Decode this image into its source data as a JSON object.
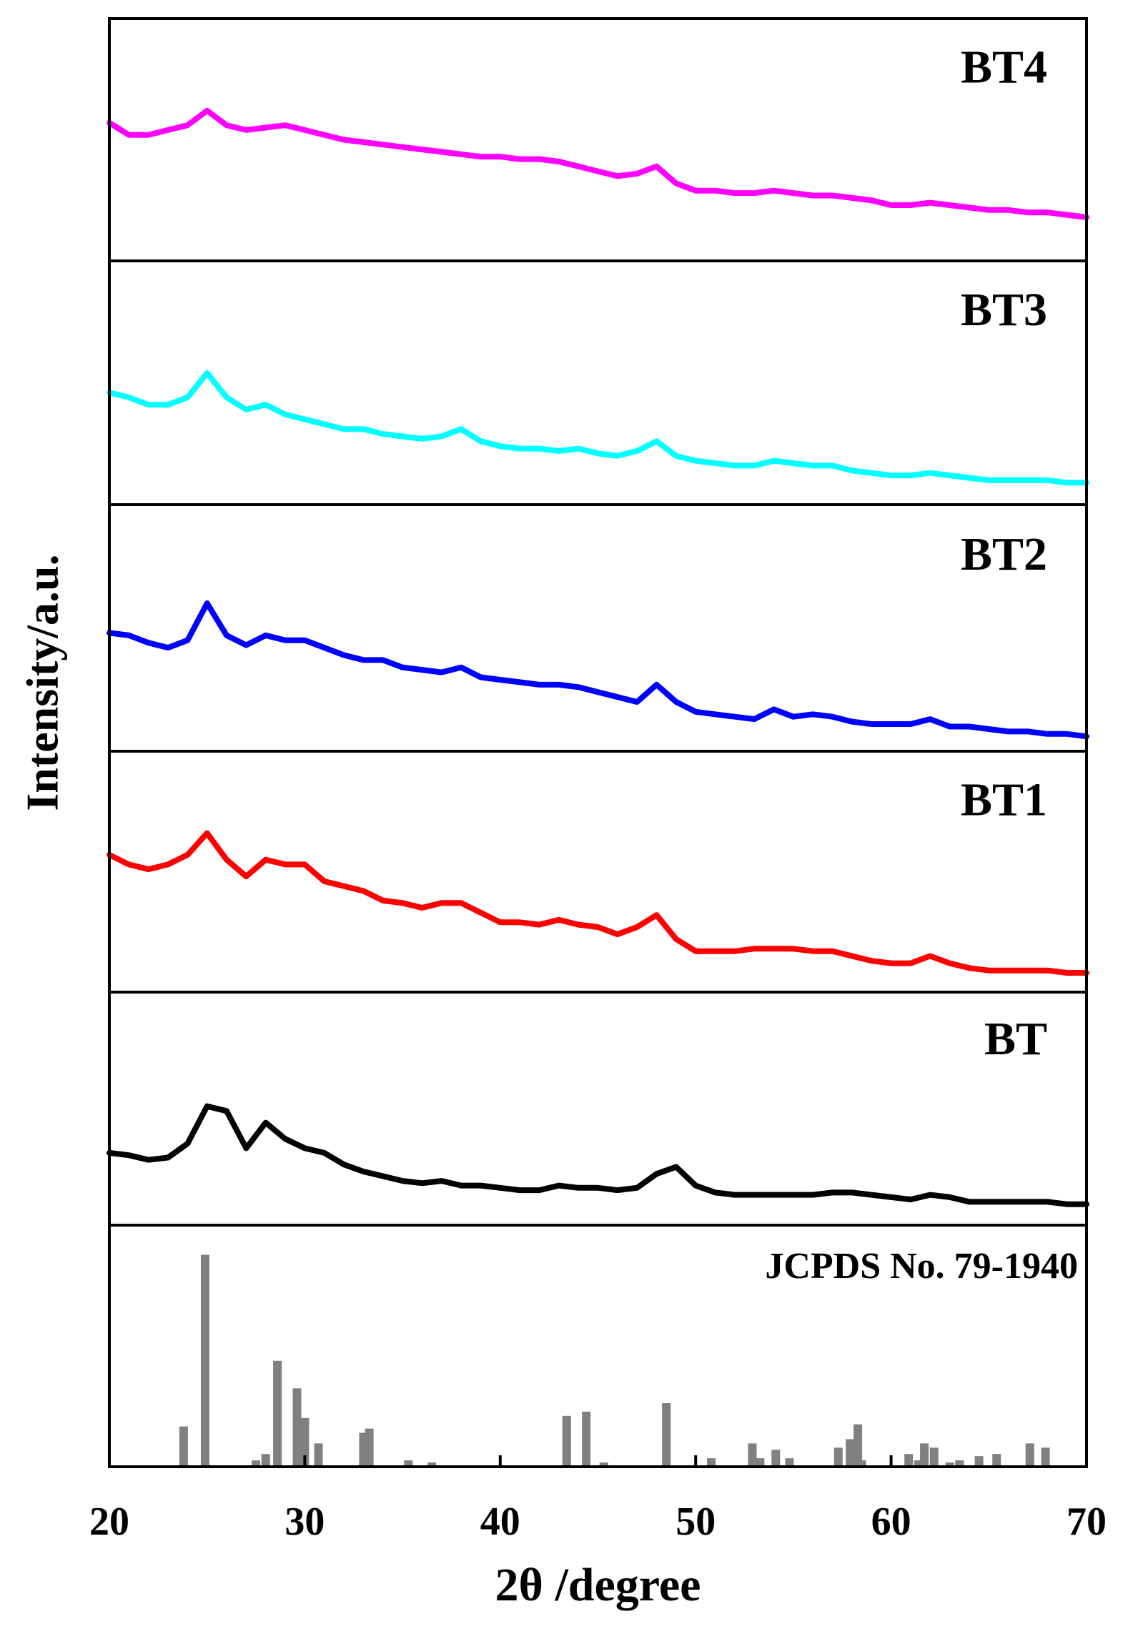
{
  "chart_data": [
    {
      "type": "line",
      "ylabel": "Intensity/a.u.",
      "xlim": [
        20,
        70
      ],
      "ylim": [
        0,
        100
      ],
      "x": [
        20,
        21,
        22,
        23,
        24,
        25,
        26,
        27,
        28,
        29,
        30,
        31,
        32,
        33,
        34,
        35,
        36,
        37,
        38,
        39,
        40,
        41,
        42,
        43,
        44,
        45,
        46,
        47,
        48,
        49,
        50,
        51,
        52,
        53,
        54,
        55,
        56,
        57,
        58,
        59,
        60,
        61,
        62,
        63,
        64,
        65,
        66,
        67,
        68,
        69,
        70
      ],
      "series": [
        {
          "name": "BT4",
          "color": "#ff00ff",
          "values": [
            57,
            52,
            52,
            54,
            56,
            62,
            56,
            54,
            55,
            56,
            54,
            52,
            50,
            49,
            48,
            47,
            46,
            45,
            44,
            43,
            43,
            42,
            42,
            41,
            39,
            37,
            35,
            36,
            39,
            32,
            29,
            29,
            28,
            28,
            29,
            28,
            27,
            27,
            26,
            25,
            23,
            23,
            24,
            23,
            22,
            21,
            21,
            20,
            20,
            19,
            18
          ]
        }
      ]
    },
    {
      "type": "line",
      "xlim": [
        20,
        70
      ],
      "ylim": [
        0,
        100
      ],
      "x": [
        20,
        21,
        22,
        23,
        24,
        25,
        26,
        27,
        28,
        29,
        30,
        31,
        32,
        33,
        34,
        35,
        36,
        37,
        38,
        39,
        40,
        41,
        42,
        43,
        44,
        45,
        46,
        47,
        48,
        49,
        50,
        51,
        52,
        53,
        54,
        55,
        56,
        57,
        58,
        59,
        60,
        61,
        62,
        63,
        64,
        65,
        66,
        67,
        68,
        69,
        70
      ],
      "series": [
        {
          "name": "BT3",
          "color": "#00ffff",
          "values": [
            46,
            44,
            41,
            41,
            44,
            54,
            44,
            39,
            41,
            37,
            35,
            33,
            31,
            31,
            29,
            28,
            27,
            28,
            31,
            26,
            24,
            23,
            23,
            22,
            23,
            21,
            20,
            22,
            26,
            20,
            18,
            17,
            16,
            16,
            18,
            17,
            16,
            16,
            14,
            13,
            12,
            12,
            13,
            12,
            11,
            10,
            10,
            10,
            10,
            9,
            9
          ]
        }
      ]
    },
    {
      "type": "line",
      "xlim": [
        20,
        70
      ],
      "ylim": [
        0,
        100
      ],
      "x": [
        20,
        21,
        22,
        23,
        24,
        25,
        26,
        27,
        28,
        29,
        30,
        31,
        32,
        33,
        34,
        35,
        36,
        37,
        38,
        39,
        40,
        41,
        42,
        43,
        44,
        45,
        46,
        47,
        48,
        49,
        50,
        51,
        52,
        53,
        54,
        55,
        56,
        57,
        58,
        59,
        60,
        61,
        62,
        63,
        64,
        65,
        66,
        67,
        68,
        69,
        70
      ],
      "series": [
        {
          "name": "BT2",
          "color": "#0000ff",
          "values": [
            48,
            47,
            44,
            42,
            45,
            60,
            47,
            43,
            47,
            45,
            45,
            42,
            39,
            37,
            37,
            34,
            33,
            32,
            34,
            30,
            29,
            28,
            27,
            27,
            26,
            24,
            22,
            20,
            27,
            20,
            16,
            15,
            14,
            13,
            17,
            14,
            15,
            14,
            12,
            11,
            11,
            11,
            13,
            10,
            10,
            9,
            8,
            8,
            7,
            7,
            6
          ]
        }
      ]
    },
    {
      "type": "line",
      "xlim": [
        20,
        70
      ],
      "ylim": [
        0,
        100
      ],
      "x": [
        20,
        21,
        22,
        23,
        24,
        25,
        26,
        27,
        28,
        29,
        30,
        31,
        32,
        33,
        34,
        35,
        36,
        37,
        38,
        39,
        40,
        41,
        42,
        43,
        44,
        45,
        46,
        47,
        48,
        49,
        50,
        51,
        52,
        53,
        54,
        55,
        56,
        57,
        58,
        59,
        60,
        61,
        62,
        63,
        64,
        65,
        66,
        67,
        68,
        69,
        70
      ],
      "series": [
        {
          "name": "BT1",
          "color": "#ff0000",
          "values": [
            57,
            53,
            51,
            53,
            57,
            66,
            55,
            48,
            55,
            53,
            53,
            46,
            44,
            42,
            38,
            37,
            35,
            37,
            37,
            33,
            29,
            29,
            28,
            30,
            28,
            27,
            24,
            27,
            32,
            22,
            17,
            17,
            17,
            18,
            18,
            18,
            17,
            17,
            15,
            13,
            12,
            12,
            15,
            12,
            10,
            9,
            9,
            9,
            9,
            8,
            8
          ]
        }
      ]
    },
    {
      "type": "line",
      "xlim": [
        20,
        70
      ],
      "ylim": [
        0,
        100
      ],
      "x": [
        20,
        21,
        22,
        23,
        24,
        25,
        26,
        27,
        28,
        29,
        30,
        31,
        32,
        33,
        34,
        35,
        36,
        37,
        38,
        39,
        40,
        41,
        42,
        43,
        44,
        45,
        46,
        47,
        48,
        49,
        50,
        51,
        52,
        53,
        54,
        55,
        56,
        57,
        58,
        59,
        60,
        61,
        62,
        63,
        64,
        65,
        66,
        67,
        68,
        69,
        70
      ],
      "series": [
        {
          "name": "BT",
          "color": "#000000",
          "values": [
            31,
            30,
            28,
            29,
            35,
            51,
            49,
            33,
            44,
            37,
            33,
            31,
            26,
            23,
            21,
            19,
            18,
            19,
            17,
            17,
            16,
            15,
            15,
            17,
            16,
            16,
            15,
            16,
            22,
            25,
            17,
            14,
            13,
            13,
            13,
            13,
            13,
            14,
            14,
            13,
            12,
            11,
            13,
            12,
            10,
            10,
            10,
            10,
            10,
            9,
            9
          ]
        }
      ]
    },
    {
      "type": "bar",
      "annotation": "JCPDS No. 79-1940",
      "color": "#808080",
      "xlabel": "2θ /degree",
      "xlim": [
        20,
        70
      ],
      "xticks": [
        20,
        30,
        40,
        50,
        60,
        70
      ],
      "ylim": [
        0,
        114
      ],
      "x": [
        23.8,
        24.9,
        27.5,
        28.0,
        28.6,
        29.6,
        30.0,
        30.7,
        33.0,
        33.3,
        35.3,
        36.5,
        43.4,
        44.4,
        45.3,
        48.5,
        50.8,
        52.9,
        53.3,
        54.1,
        54.8,
        57.3,
        57.9,
        58.3,
        58.5,
        60.9,
        61.4,
        61.7,
        62.2,
        63.0,
        63.5,
        64.5,
        65.4,
        67.1,
        67.9
      ],
      "values": [
        19,
        100,
        3,
        6,
        50,
        37,
        23,
        11,
        16,
        18,
        3,
        2,
        24,
        26,
        2,
        30,
        4,
        11,
        4,
        8,
        4,
        9,
        13,
        20,
        3,
        6,
        3,
        11,
        9,
        2,
        3,
        5,
        6,
        11,
        9
      ]
    }
  ]
}
